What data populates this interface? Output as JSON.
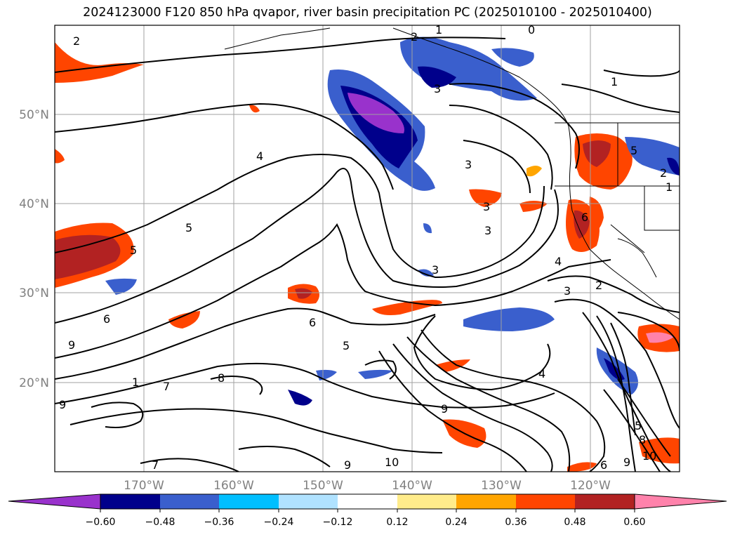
{
  "title": "2024123000 F120 850 hPa qvapor, river basin precipitation PC (2025010100 - 2025010400)",
  "map": {
    "lat_labels": [
      "50°N",
      "40°N",
      "30°N",
      "20°N"
    ],
    "lon_labels": [
      "170°W",
      "160°W",
      "150°W",
      "140°W",
      "130°W",
      "120°W"
    ],
    "contour_labels": [
      "2",
      "2",
      "1",
      "0",
      "3",
      "1",
      "3",
      "4",
      "3",
      "3",
      "3",
      "2",
      "5",
      "5",
      "6",
      "3",
      "9",
      "9",
      "1",
      "7",
      "8",
      "6",
      "5",
      "4",
      "9",
      "9",
      "10",
      "6",
      "9",
      "10",
      "5",
      "8",
      "4",
      "5",
      "6",
      "2",
      "1",
      "7"
    ]
  },
  "colorbar": {
    "ticks": [
      "−0.60",
      "−0.48",
      "−0.36",
      "−0.24",
      "−0.12",
      "0.12",
      "0.24",
      "0.36",
      "0.48",
      "0.60"
    ],
    "colors": [
      "#9932cc",
      "#00008b",
      "#3a5fcd",
      "#00bfff",
      "#b0e2ff",
      "#ffffff",
      "#ffec8b",
      "#ffa500",
      "#ff4500",
      "#b22222",
      "#ff82ab"
    ]
  }
}
